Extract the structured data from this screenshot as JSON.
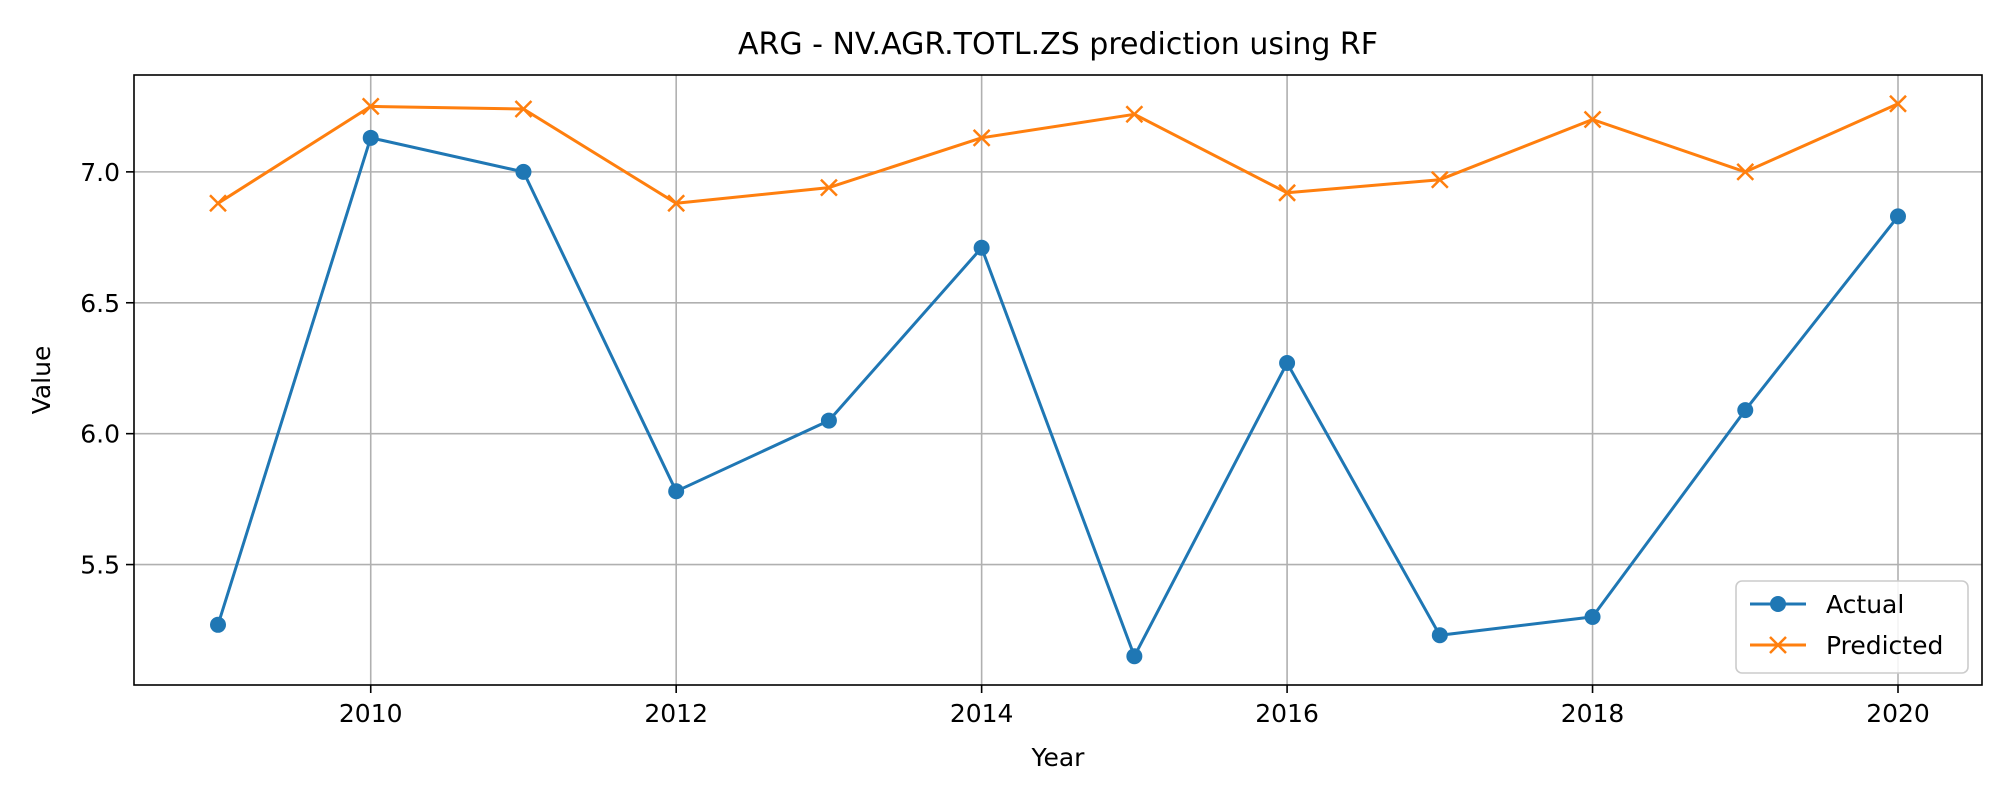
{
  "chart_data": {
    "type": "line",
    "title": "ARG - NV.AGR.TOTL.ZS prediction using RF",
    "xlabel": "Year",
    "ylabel": "Value",
    "x": [
      2009,
      2010,
      2011,
      2012,
      2013,
      2014,
      2015,
      2016,
      2017,
      2018,
      2019,
      2020
    ],
    "xlim": [
      2008.45,
      2020.55
    ],
    "ylim": [
      5.04,
      7.37
    ],
    "xticks": [
      "2010",
      "2012",
      "2014",
      "2016",
      "2018",
      "2020"
    ],
    "yticks": [
      "5.5",
      "6.0",
      "6.5",
      "7.0"
    ],
    "grid": true,
    "legend_position": "bottom-right",
    "series": [
      {
        "name": "Actual",
        "marker": "circle",
        "color": "#1f77b4",
        "values": [
          5.27,
          7.13,
          7.0,
          5.78,
          6.05,
          6.71,
          5.15,
          6.27,
          5.23,
          5.3,
          6.09,
          6.83
        ]
      },
      {
        "name": "Predicted",
        "marker": "x",
        "color": "#ff7f0e",
        "values": [
          6.88,
          7.25,
          7.24,
          6.88,
          6.94,
          7.13,
          7.22,
          6.92,
          6.97,
          7.2,
          7.0,
          7.26
        ]
      }
    ]
  }
}
